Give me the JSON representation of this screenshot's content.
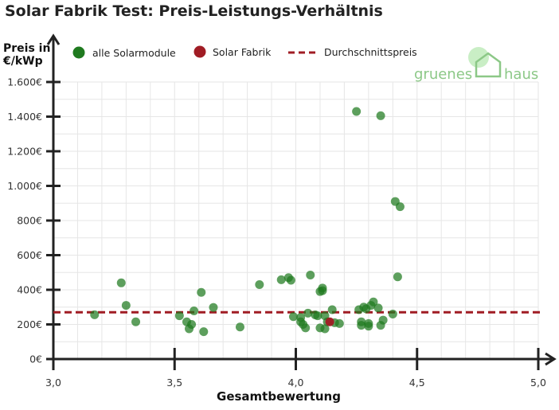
{
  "chart_data": {
    "type": "scatter",
    "title": "Solar Fabrik Test: Preis-Leistungs-Verhältnis",
    "xlabel": "Gesamtbewertung",
    "ylabel_line1": "Preis in",
    "ylabel_line2": "€/kWp",
    "xlim": [
      3.0,
      5.0
    ],
    "ylim": [
      0,
      1600
    ],
    "xticks": [
      {
        "value": 3.0,
        "label": "3,0"
      },
      {
        "value": 3.5,
        "label": "3,5"
      },
      {
        "value": 4.0,
        "label": "4,0"
      },
      {
        "value": 4.5,
        "label": "4,5"
      },
      {
        "value": 5.0,
        "label": "5,0"
      }
    ],
    "yticks": [
      {
        "value": 0,
        "label": "0€"
      },
      {
        "value": 200,
        "label": "200€"
      },
      {
        "value": 400,
        "label": "400€"
      },
      {
        "value": 600,
        "label": "600€"
      },
      {
        "value": 800,
        "label": "800€"
      },
      {
        "value": 1000,
        "label": "1.000€"
      },
      {
        "value": 1200,
        "label": "1.200€"
      },
      {
        "value": 1400,
        "label": "1.400€"
      },
      {
        "value": 1600,
        "label": "1.600€"
      }
    ],
    "grid": true,
    "legend_position": "top",
    "colors": {
      "all": "#1f7a1f",
      "highlight": "#a01c24",
      "average": "#a01c24",
      "grid": "#e6e6e6",
      "axis": "#222222"
    },
    "series": [
      {
        "name": "alle Solarmodule",
        "points": [
          [
            3.17,
            256
          ],
          [
            3.28,
            440
          ],
          [
            3.3,
            310
          ],
          [
            3.34,
            215
          ],
          [
            3.52,
            250
          ],
          [
            3.55,
            215
          ],
          [
            3.56,
            175
          ],
          [
            3.57,
            200
          ],
          [
            3.58,
            278
          ],
          [
            3.61,
            385
          ],
          [
            3.62,
            158
          ],
          [
            3.66,
            298
          ],
          [
            3.77,
            185
          ],
          [
            3.85,
            430
          ],
          [
            3.94,
            458
          ],
          [
            3.97,
            470
          ],
          [
            3.98,
            455
          ],
          [
            3.99,
            245
          ],
          [
            4.02,
            240
          ],
          [
            4.02,
            215
          ],
          [
            4.03,
            200
          ],
          [
            4.04,
            180
          ],
          [
            4.05,
            265
          ],
          [
            4.06,
            485
          ],
          [
            4.08,
            255
          ],
          [
            4.09,
            250
          ],
          [
            4.1,
            180
          ],
          [
            4.1,
            390
          ],
          [
            4.11,
            410
          ],
          [
            4.11,
            395
          ],
          [
            4.12,
            250
          ],
          [
            4.12,
            175
          ],
          [
            4.13,
            215
          ],
          [
            4.15,
            285
          ],
          [
            4.16,
            210
          ],
          [
            4.18,
            205
          ],
          [
            4.25,
            1430
          ],
          [
            4.26,
            285
          ],
          [
            4.27,
            195
          ],
          [
            4.27,
            215
          ],
          [
            4.28,
            300
          ],
          [
            4.29,
            290
          ],
          [
            4.3,
            205
          ],
          [
            4.3,
            190
          ],
          [
            4.31,
            310
          ],
          [
            4.32,
            330
          ],
          [
            4.34,
            295
          ],
          [
            4.35,
            1405
          ],
          [
            4.35,
            195
          ],
          [
            4.36,
            225
          ],
          [
            4.4,
            260
          ],
          [
            4.41,
            910
          ],
          [
            4.42,
            475
          ],
          [
            4.43,
            880
          ]
        ]
      },
      {
        "name": "Solar Fabrik",
        "points": [
          [
            4.14,
            215
          ]
        ]
      }
    ],
    "reference_lines": [
      {
        "name": "Durchschnittspreis",
        "y": 270
      }
    ],
    "logo": {
      "word1": "gruenes",
      "word2": "haus"
    }
  }
}
